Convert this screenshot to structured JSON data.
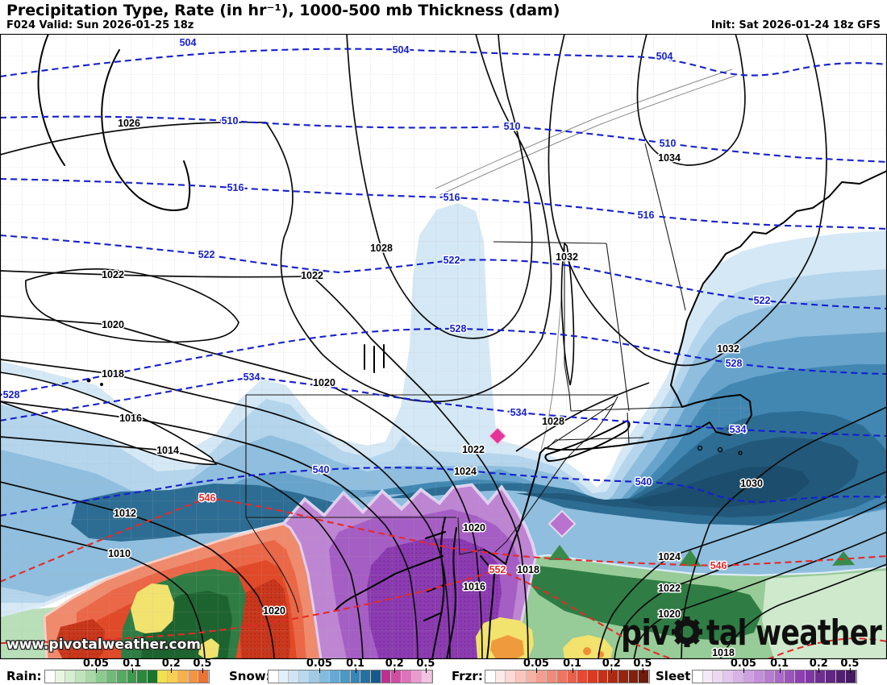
{
  "header": {
    "title": "Precipitation Type, Rate (in hr⁻¹), 1000-500 mb Thickness (dam)",
    "valid": "F024 Valid: Sun 2026-01-25 18z",
    "init": "Init: Sat 2026-01-24 18z GFS"
  },
  "branding": {
    "watermark": "www.pivotalweather.com",
    "logo_left": "piv",
    "logo_right": "tal weather"
  },
  "legend": {
    "tick_pos": [
      31,
      53,
      77,
      96
    ],
    "groups": [
      {
        "label": "Rain:",
        "ticks": [
          "0.05",
          "0.1",
          "0.2",
          "0.5"
        ],
        "cells": [
          "#ffffff",
          "#e8f5e2",
          "#d5edd0",
          "#c0e3bd",
          "#a7d8a6",
          "#8cca8f",
          "#70bb77",
          "#55aa60",
          "#3d9a4c",
          "#2b883c",
          "#1b752e",
          "#f1e14d",
          "#f7cf56",
          "#f7b04a",
          "#f59440",
          "#ef7230"
        ]
      },
      {
        "label": "Snow:",
        "ticks": [
          "0.05",
          "0.1",
          "0.2",
          "0.5"
        ],
        "cells": [
          "#ffffff",
          "#e3f0fa",
          "#cfe5f5",
          "#b9d9ee",
          "#9fcbe7",
          "#83bbde",
          "#66aad3",
          "#4c98c6",
          "#3685b6",
          "#2470a3",
          "#145a8d",
          "#bf2f90",
          "#cf4da3",
          "#dc74b8",
          "#e89cce",
          "#f2c4e2"
        ]
      },
      {
        "label": "Frzr:",
        "ticks": [
          "0.05",
          "0.1",
          "0.2",
          "0.5"
        ],
        "cells": [
          "#ffffff",
          "#fdeae8",
          "#fbd9d4",
          "#f9c6bd",
          "#f7b2a6",
          "#f49e8f",
          "#f18a78",
          "#ee7561",
          "#ea5f4a",
          "#e64a34",
          "#d93a22",
          "#c43118",
          "#ad2a12",
          "#97240e",
          "#82200c",
          "#6e1b0a"
        ]
      },
      {
        "label": "Sleet:",
        "ticks": [
          "0.05",
          "0.1",
          "0.2",
          "0.5"
        ],
        "cells": [
          "#ffffff",
          "#f5e8f8",
          "#ecd8f2",
          "#e2c6ec",
          "#d8b4e6",
          "#cda2df",
          "#c28fd8",
          "#b77cd1",
          "#ab67c9",
          "#9e52c0",
          "#8f3eb4",
          "#7f35a3",
          "#6f2d91",
          "#602680",
          "#521f70",
          "#451a61"
        ]
      }
    ]
  },
  "map": {
    "thickness_values": [
      504,
      510,
      516,
      522,
      528,
      534,
      540,
      546,
      552
    ],
    "isobar_values": [
      1010,
      1012,
      1014,
      1016,
      1018,
      1020,
      1022,
      1024,
      1026,
      1028,
      1030,
      1032,
      1034
    ],
    "colors": {
      "thickness_cold": "#1520cf",
      "thickness_warm": "#e32b2b",
      "isobar": "#0c0c0c",
      "snow_light": "#d5e8f5",
      "snow_dark": "#22597b",
      "sleet": "#bd85d2",
      "frzr": "#ef8a6d",
      "rain": "#97cb97",
      "heavy_rain_yellow": "#f2e26e",
      "heavy_snow_magenta": "#e63398"
    },
    "contour_labels": [
      {
        "t": "504"
      },
      {
        "t": "504"
      },
      {
        "t": "504"
      },
      {
        "t": "510"
      },
      {
        "t": "510"
      },
      {
        "t": "510"
      },
      {
        "t": "516"
      },
      {
        "t": "516"
      },
      {
        "t": "516"
      },
      {
        "t": "522"
      },
      {
        "t": "522"
      },
      {
        "t": "522"
      },
      {
        "t": "528"
      },
      {
        "t": "528"
      },
      {
        "t": "528"
      },
      {
        "t": "534"
      },
      {
        "t": "534"
      },
      {
        "t": "534"
      },
      {
        "t": "540"
      },
      {
        "t": "540"
      },
      {
        "t": "546"
      },
      {
        "t": "546"
      },
      {
        "t": "552"
      },
      {
        "t": "1026"
      },
      {
        "t": "1028"
      },
      {
        "t": "1028"
      },
      {
        "t": "1022"
      },
      {
        "t": "1022"
      },
      {
        "t": "1022"
      },
      {
        "t": "1022"
      },
      {
        "t": "1020"
      },
      {
        "t": "1020"
      },
      {
        "t": "1020"
      },
      {
        "t": "1020"
      },
      {
        "t": "1020"
      },
      {
        "t": "1018"
      },
      {
        "t": "1018"
      },
      {
        "t": "1018"
      },
      {
        "t": "1016"
      },
      {
        "t": "1016"
      },
      {
        "t": "1014"
      },
      {
        "t": "1012"
      },
      {
        "t": "1010"
      },
      {
        "t": "1024"
      },
      {
        "t": "1024"
      },
      {
        "t": "1030"
      },
      {
        "t": "1032"
      },
      {
        "t": "1032"
      },
      {
        "t": "1034"
      }
    ]
  }
}
